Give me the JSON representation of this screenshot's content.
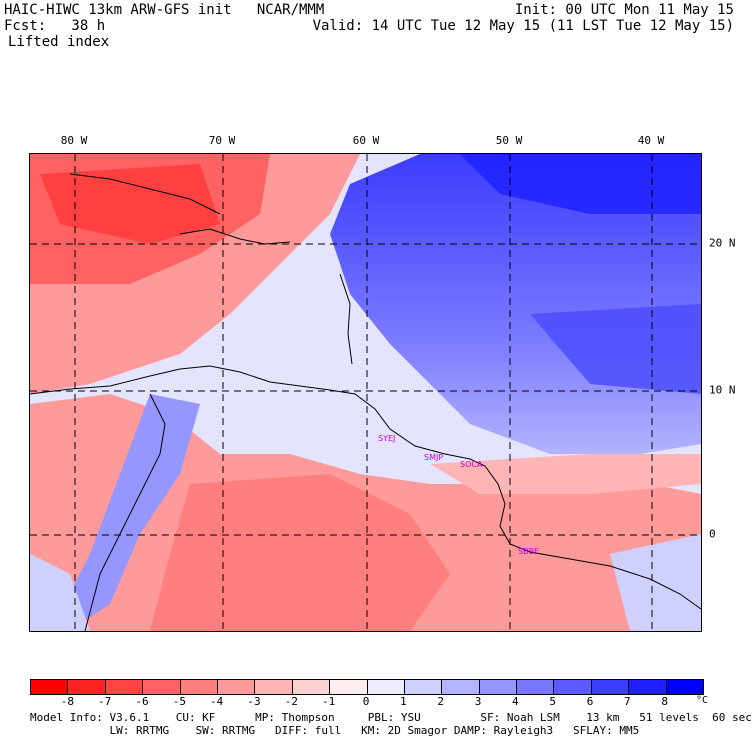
{
  "header": {
    "line1_left": "HAIC-HIWC 13km ARW-GFS init   NCAR/MMM",
    "line1_right": "Init: 00 UTC Mon 11 May 15",
    "line2_left": "Fcst:   38 h",
    "line2_right": "Valid: 14 UTC Tue 12 May 15 (11 LST Tue 12 May 15)",
    "field": "Lifted index"
  },
  "map": {
    "lon_labels": [
      "80 W",
      "70 W",
      "60 W",
      "50 W",
      "40 W"
    ],
    "lat_labels": [
      "20 N",
      "10 N",
      "0"
    ],
    "stations": [
      "SYEJ",
      "SMJP",
      "SOCA",
      "SBBE"
    ]
  },
  "colorbar": {
    "unit": "°C",
    "ticks": [
      "-8",
      "-7",
      "-6",
      "-5",
      "-4",
      "-3",
      "-2",
      "-1",
      "0",
      "1",
      "2",
      "3",
      "4",
      "5",
      "6",
      "7",
      "8"
    ],
    "colors": [
      "#ff0000",
      "#ff2222",
      "#ff4444",
      "#ff6262",
      "#ff7f7f",
      "#ff9a9a",
      "#ffb5b5",
      "#ffd2d2",
      "#ffeded",
      "#ededff",
      "#d0d0ff",
      "#b3b3ff",
      "#9696ff",
      "#7878ff",
      "#5a5aff",
      "#3c3cff",
      "#1e1eff",
      "#0000ff"
    ]
  },
  "footer": {
    "line1": "Model Info: V3.6.1    CU: KF      MP: Thompson     PBL: YSU         SF: Noah LSM    13 km   51 levels  60 sec",
    "line2": "            LW: RRTMG    SW: RRTMG   DIFF: full   KM: 2D Smagor DAMP: Rayleigh3   SFLAY: MM5"
  }
}
